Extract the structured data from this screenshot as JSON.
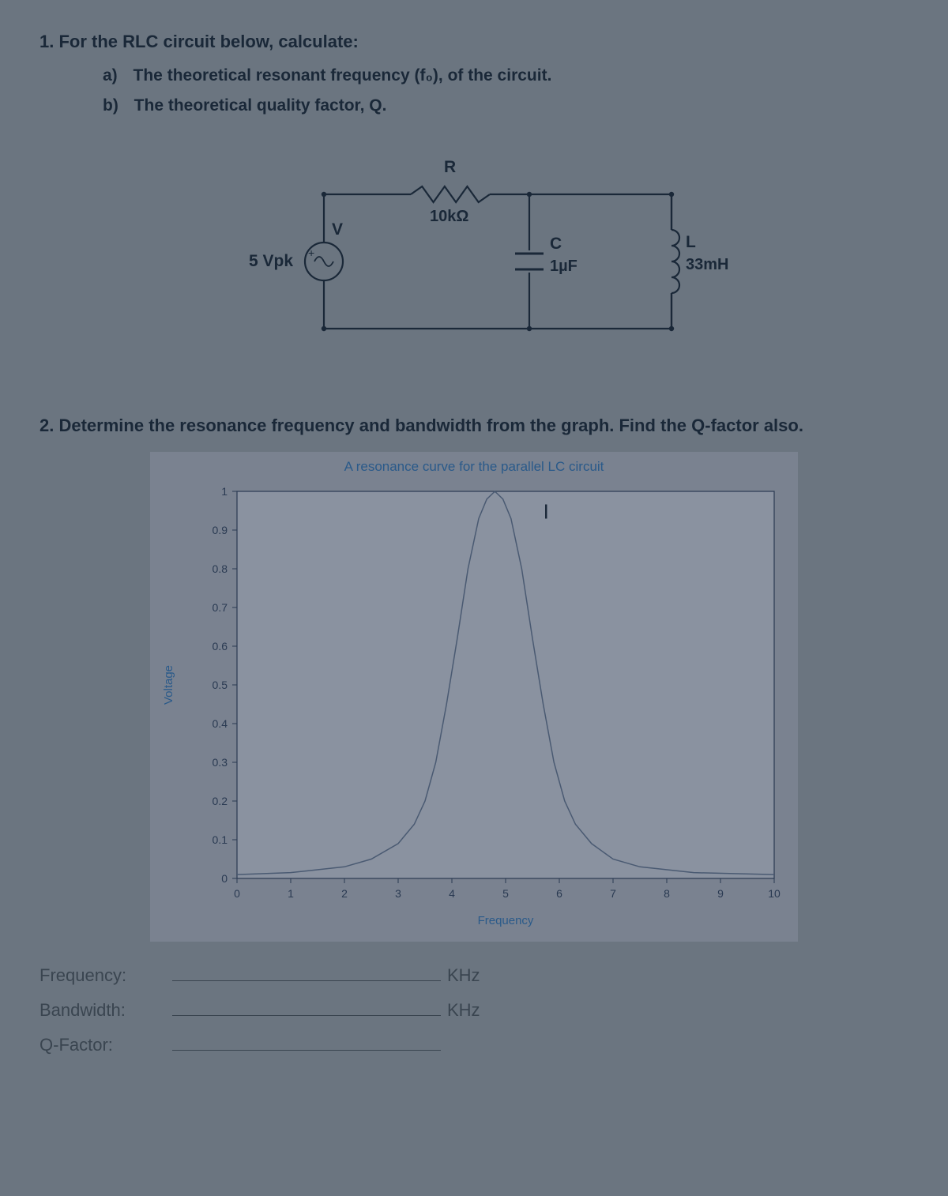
{
  "q1": {
    "number": "1.",
    "text": "For the RLC circuit below, calculate:",
    "a_letter": "a)",
    "a_text": "The theoretical resonant frequency (f₀), of the circuit.",
    "b_letter": "b)",
    "b_text": "The theoretical quality factor, Q."
  },
  "circuit": {
    "source_label": "V",
    "source_value": "5 Vpk",
    "r_label": "R",
    "r_value": "10kΩ",
    "c_label": "C",
    "c_value": "1µF",
    "l_label": "L",
    "l_value": "33mH",
    "wire_color": "#1a2838",
    "text_color": "#1a2838"
  },
  "q2": {
    "number": "2.",
    "text": "Determine the resonance frequency and bandwidth from the graph. Find the Q-factor also."
  },
  "chart": {
    "title": "A resonance curve for the parallel LC circuit",
    "title_color": "#2a5a8a",
    "title_fontsize": 17,
    "xlabel": "Frequency",
    "ylabel": "Voltage",
    "label_fontsize": 15,
    "label_color": "#2a5a8a",
    "plot_bg": "#8a92a0",
    "frame_bg": "#7a8290",
    "axis_color": "#2a3a52",
    "tick_color": "#2a3a52",
    "tick_fontsize": 14,
    "xlim": [
      0,
      10
    ],
    "ylim": [
      0,
      1
    ],
    "xticks": [
      0,
      1,
      2,
      3,
      4,
      5,
      6,
      7,
      8,
      9,
      10
    ],
    "yticks": [
      0,
      0.1,
      0.2,
      0.3,
      0.4,
      0.5,
      0.6,
      0.7,
      0.8,
      0.9,
      1
    ],
    "ytick_labels": [
      "0",
      "0.1",
      "0.2",
      "0.3",
      "0.4",
      "0.5",
      "0.6",
      "0.7",
      "0.8",
      "0.9",
      "1"
    ],
    "curve_color": "#4a5a72",
    "curve_width": 1.5,
    "curve_points": [
      [
        0,
        0.01
      ],
      [
        1,
        0.015
      ],
      [
        2,
        0.03
      ],
      [
        2.5,
        0.05
      ],
      [
        3,
        0.09
      ],
      [
        3.3,
        0.14
      ],
      [
        3.5,
        0.2
      ],
      [
        3.7,
        0.3
      ],
      [
        3.9,
        0.45
      ],
      [
        4.1,
        0.62
      ],
      [
        4.3,
        0.8
      ],
      [
        4.5,
        0.93
      ],
      [
        4.65,
        0.98
      ],
      [
        4.8,
        1.0
      ],
      [
        4.95,
        0.98
      ],
      [
        5.1,
        0.93
      ],
      [
        5.3,
        0.8
      ],
      [
        5.5,
        0.62
      ],
      [
        5.7,
        0.45
      ],
      [
        5.9,
        0.3
      ],
      [
        6.1,
        0.2
      ],
      [
        6.3,
        0.14
      ],
      [
        6.6,
        0.09
      ],
      [
        7,
        0.05
      ],
      [
        7.5,
        0.03
      ],
      [
        8.5,
        0.015
      ],
      [
        10,
        0.01
      ]
    ],
    "hand_I": "I"
  },
  "answers": {
    "freq_label": "Frequency:",
    "freq_unit": "KHz",
    "bw_label": "Bandwidth:",
    "bw_unit": "KHz",
    "q_label": "Q-Factor:"
  }
}
